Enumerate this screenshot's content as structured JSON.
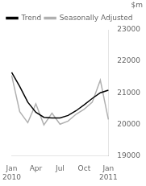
{
  "chart_data": {
    "type": "line",
    "ylabel": "$m",
    "categories": [
      "Jan 2010",
      null,
      null,
      "Apr",
      null,
      null,
      "Jul",
      null,
      null,
      "Oct",
      null,
      null,
      "Jan 2011"
    ],
    "series": [
      {
        "name": "Trend",
        "color": "#000000",
        "values": [
          21650,
          21200,
          20700,
          20380,
          20220,
          20200,
          20200,
          20280,
          20430,
          20620,
          20820,
          21000,
          21080
        ]
      },
      {
        "name": "Seasonally Adjusted",
        "color": "#b0b0b0",
        "values": [
          21550,
          20400,
          20050,
          20650,
          19980,
          20350,
          20000,
          20100,
          20320,
          20480,
          20700,
          21400,
          20150
        ]
      }
    ],
    "ylim": [
      19000,
      23000
    ],
    "yticks": [
      19000,
      20000,
      21000,
      22000,
      23000
    ],
    "grid": false,
    "legend": "upper left"
  }
}
